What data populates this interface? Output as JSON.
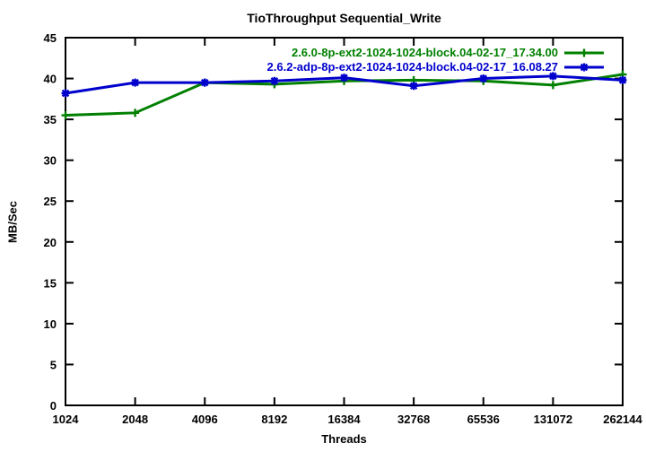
{
  "chart_data": {
    "type": "line",
    "title": "TioThroughput Sequential_Write",
    "xlabel": "Threads",
    "ylabel": "MB/Sec",
    "x_scale": "log2-categorical",
    "categories": [
      "1024",
      "2048",
      "4096",
      "8192",
      "16384",
      "32768",
      "65536",
      "131072",
      "262144"
    ],
    "yticks": [
      0,
      5,
      10,
      15,
      20,
      25,
      30,
      35,
      40,
      45
    ],
    "ylim": [
      0,
      45
    ],
    "grid": false,
    "legend_position": "top-right-inside",
    "axis_color": "#000000",
    "background_color": "#ffffff",
    "series": [
      {
        "name": "2.6.0-8p-ext2-1024-1024-block.04-02-17_17.34.00",
        "color": "#008000",
        "marker": "plus",
        "values": [
          35.5,
          35.8,
          39.5,
          39.3,
          39.7,
          39.8,
          39.7,
          39.2,
          40.5
        ]
      },
      {
        "name": "2.6.2-adp-8p-ext2-1024-1024-block.04-02-17_16.08.27",
        "color": "#0000cd",
        "marker": "asterisk",
        "values": [
          38.2,
          39.5,
          39.5,
          39.7,
          40.1,
          39.1,
          40.0,
          40.3,
          39.8
        ]
      }
    ]
  }
}
